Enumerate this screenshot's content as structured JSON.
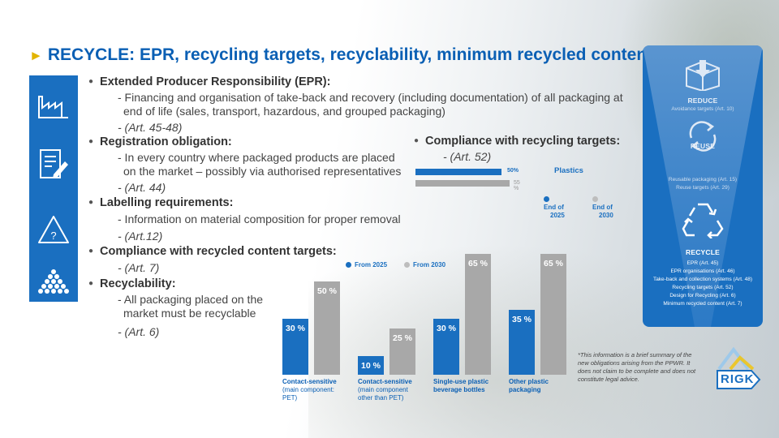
{
  "title": "RECYCLE: EPR, recycling targets, recyclability, minimum recycled content",
  "bullets": {
    "epr": {
      "head": "Extended Producer Responsibility (EPR):",
      "line1": "- Financing and organisation of take-back and recovery (including documentation) of all packaging at",
      "line2": "end of life (sales, transport, hazardous, and grouped packaging)",
      "ref": "- (Art. 45-48)"
    },
    "registration": {
      "head": "Registration obligation:",
      "line1": "- In every country where packaged products are placed",
      "line2": "on the market – possibly via authorised representatives",
      "ref": "- (Art. 44)"
    },
    "labelling": {
      "head": "Labelling requirements:",
      "line1": "- Information on material composition for proper removal",
      "ref": "- (Art.12)"
    },
    "recycled_content": {
      "head": "Compliance with recycled content targets:",
      "ref": "- (Art. 7)"
    },
    "recyclability": {
      "head": "Recyclability:",
      "line1": "- All packaging placed on the",
      "line2": "market must be recyclable",
      "ref": "- (Art. 6)"
    }
  },
  "compliance": {
    "head": "Compliance with recycling targets:",
    "ref": "- (Art. 52)",
    "material": "Plastics",
    "value_2025_label": "50%",
    "value_2030_label": "55 %",
    "legend_2025": [
      "End of",
      "2025"
    ],
    "legend_2030": [
      "End of",
      "2030"
    ]
  },
  "recycle_panel": {
    "reduce": {
      "title": "REDUCE",
      "sub": "Avoidance targets (Art. 10)"
    },
    "reuse": {
      "title": "REUSE",
      "sub1": "Reusable packaging (Art. 15)",
      "sub2": "Reuse targets (Art. 29)"
    },
    "recycle": {
      "title": "RECYCLE",
      "items": [
        "EPR (Art. 45)",
        "EPR organisations (Art. 46)",
        "Take-back and collection systems (Art. 48)",
        "Recycling targets (Art. 52)",
        "Design for Recycling (Art. 6)",
        "Minimum recycled content (Art. 7)"
      ]
    }
  },
  "chart_data": {
    "type": "bar",
    "legend": [
      "From 2025",
      "From 2030"
    ],
    "categories": [
      "Contact-sensitive (main component: PET)",
      "Contact-sensitive (main component other than PET)",
      "Single-use plastic beverage bottles",
      "Other plastic packaging"
    ],
    "category_lines": [
      [
        "Contact-sensitive",
        "(main component:",
        "PET)"
      ],
      [
        "Contact-sensitive",
        "(main component",
        "other than PET)"
      ],
      [
        "Single-use plastic",
        "beverage bottles"
      ],
      [
        "Other plastic",
        "packaging"
      ]
    ],
    "series": [
      {
        "name": "From 2025",
        "values": [
          30,
          10,
          30,
          35
        ],
        "labels": [
          "30 %",
          "10 %",
          "30 %",
          "35 %"
        ]
      },
      {
        "name": "From 2030",
        "values": [
          50,
          25,
          65,
          65
        ],
        "labels": [
          "50 %",
          "25 %",
          "65 %",
          "65 %"
        ]
      }
    ],
    "ylim": [
      0,
      70
    ]
  },
  "disclaimer": "*This information is a brief summary of the new obligations arising from the PPWR. It does not claim to be complete and does not constitute legal advice.",
  "logo_text": "RIGK",
  "colors": {
    "blue": "#1a6fc0",
    "gray": "#a8a8a8",
    "title": "#0a5fb4",
    "accent": "#e2b400"
  },
  "icons": [
    "factory-icon",
    "document-edit-icon",
    "warning-question-icon",
    "pellets-icon",
    "box-download-icon",
    "cycle-arrows-icon",
    "recycle-icon"
  ]
}
